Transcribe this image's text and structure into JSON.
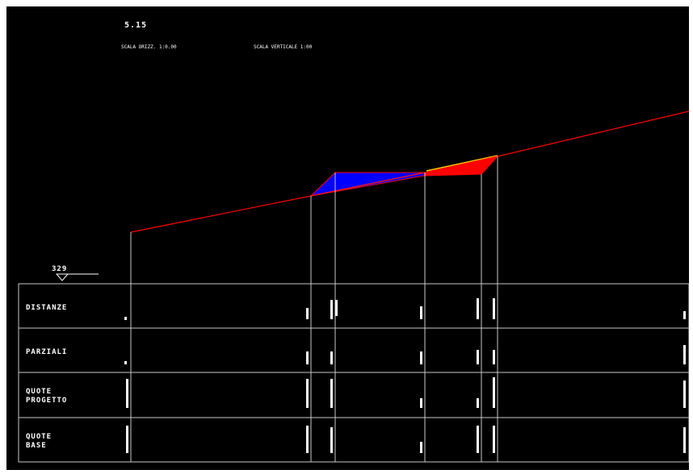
{
  "section": {
    "number": "5.15",
    "scale_left": "SCALA ORIZZ. 1:0.00",
    "scale_right": "SCALA VERTICALE 1:00"
  },
  "datum": {
    "value": "329"
  },
  "rows": [
    {
      "label_lines": [
        "DISTANZE"
      ]
    },
    {
      "label_lines": [
        "PARZIALI"
      ]
    },
    {
      "label_lines": [
        "QUOTE",
        "PROGETTO"
      ]
    },
    {
      "label_lines": [
        "QUOTE",
        "BASE"
      ]
    }
  ],
  "colors": {
    "background": "#000000",
    "ground_line": "#ff0000",
    "fill_area": "#0000ff",
    "cut_area": "#ff0000",
    "grid": "#c8c8c8",
    "text": "#ffffff",
    "highlight_line": "#66ccff",
    "accent_line": "#ffcc00"
  }
}
